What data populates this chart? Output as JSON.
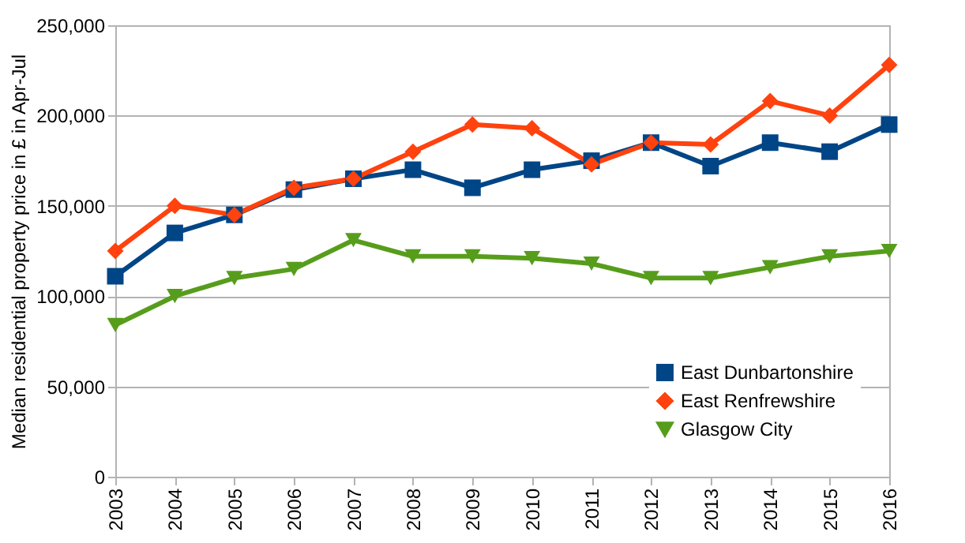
{
  "chart_data": {
    "type": "line",
    "ylabel": "Median residential property price in £ in Apr-Jul",
    "categories": [
      "2003",
      "2004",
      "2005",
      "2006",
      "2007",
      "2008",
      "2009",
      "2010",
      "2011",
      "2012",
      "2013",
      "2014",
      "2015",
      "2016"
    ],
    "series": [
      {
        "name": "East Dunbartonshire",
        "color": "#004586",
        "marker": "square",
        "values": [
          111000,
          135000,
          145000,
          159000,
          165000,
          170000,
          160000,
          170000,
          175000,
          185000,
          172000,
          185000,
          180000,
          195000
        ]
      },
      {
        "name": "East Renfrewshire",
        "color": "#ff420e",
        "marker": "diamond",
        "values": [
          125000,
          150000,
          145000,
          160000,
          165000,
          180000,
          195000,
          193000,
          173000,
          185000,
          184000,
          208000,
          200000,
          228000
        ]
      },
      {
        "name": "Glasgow City",
        "color": "#579d1c",
        "marker": "triangle",
        "values": [
          84000,
          100000,
          110000,
          115000,
          131000,
          122000,
          122000,
          121000,
          118000,
          110000,
          110000,
          116000,
          122000,
          125000
        ]
      }
    ],
    "ylim": [
      0,
      250000
    ],
    "yticks": [
      0,
      {
        "value": 50000,
        "label": "50,000"
      },
      {
        "value": 100000,
        "label": "100,000"
      },
      {
        "value": 150000,
        "label": "150,000"
      },
      {
        "value": 200000,
        "label": "200,000"
      },
      {
        "value": 250000,
        "label": "250,000"
      }
    ],
    "grid": "y",
    "legend": "bottom right",
    "line_style": "solid"
  }
}
